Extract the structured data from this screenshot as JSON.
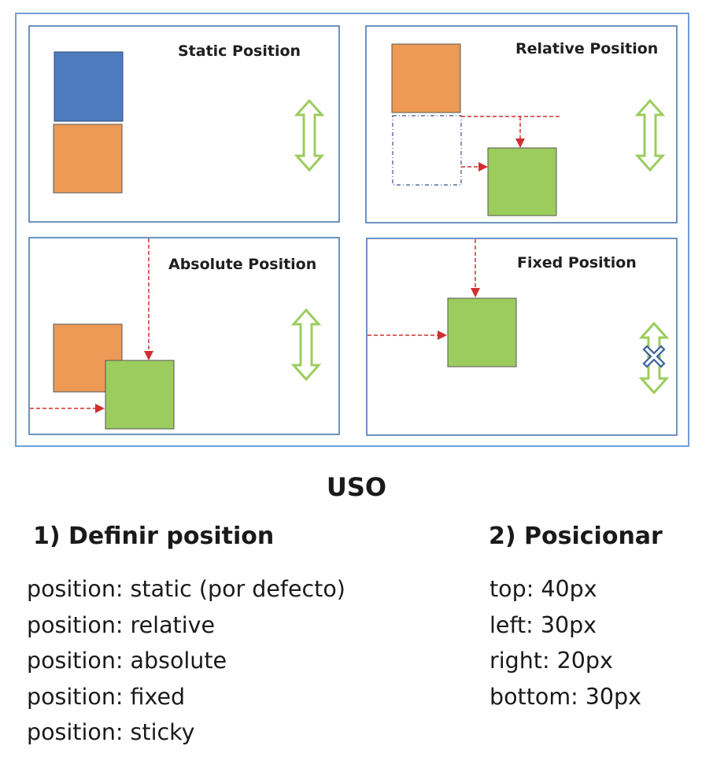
{
  "diagram": {
    "panels": [
      {
        "id": "static",
        "title": "Static Position"
      },
      {
        "id": "relative",
        "title": "Relative Position"
      },
      {
        "id": "absolute",
        "title": "Absolute Position"
      },
      {
        "id": "fixed",
        "title": "Fixed Position"
      }
    ]
  },
  "colors": {
    "outer_border": "#6f9fd8",
    "panel_border": "#3e6fad",
    "blue_box": "#4f7cc0",
    "orange_box": "#ec9a55",
    "green_box": "#9ccc5e",
    "arrow_red": "#d03030",
    "double_arrow_green": "#9ccc5e",
    "ghost_box_border": "#3a4f8a",
    "x_mark": "#3a5f9e"
  },
  "icons": {
    "scroll_arrow": "double-vertical-arrow-icon",
    "no_scroll_mark": "x-mark-icon"
  },
  "usage": {
    "title": "USO",
    "define": {
      "heading": "1) Definir position",
      "items": [
        "position: static (por defecto)",
        "position: relative",
        "position: absolute",
        "position: fixed",
        "position: sticky"
      ]
    },
    "position": {
      "heading": "2) Posicionar",
      "items": [
        "top: 40px",
        "left: 30px",
        "right: 20px",
        "bottom: 30px"
      ]
    }
  }
}
